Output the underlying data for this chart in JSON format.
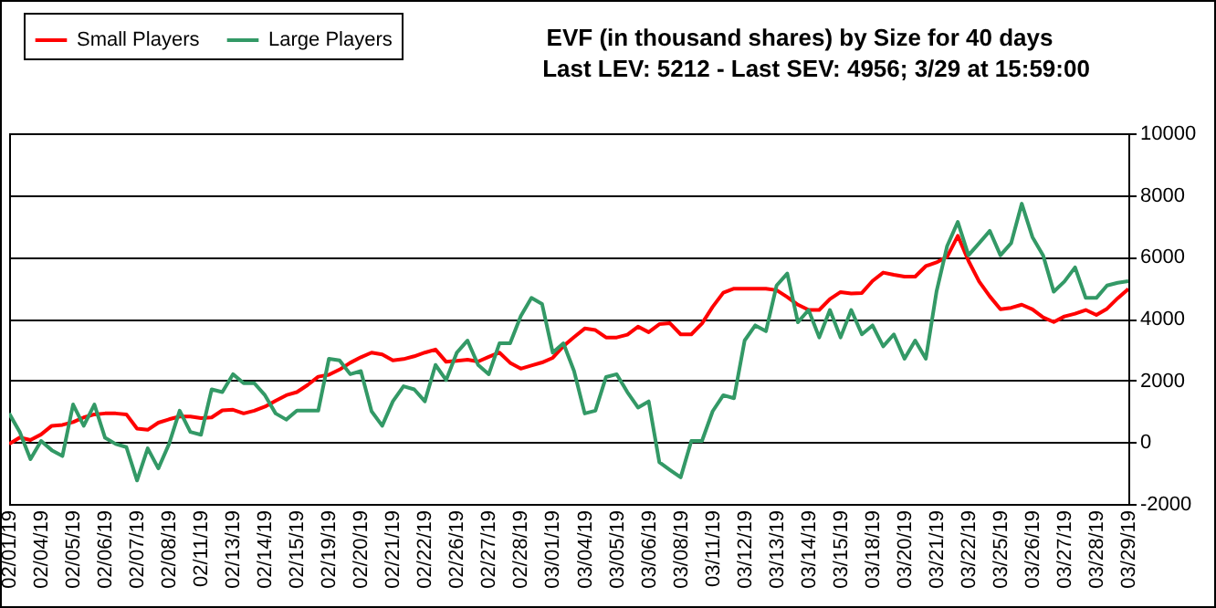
{
  "chart_data": {
    "type": "line",
    "title": "EVF (in thousand shares) by Size for 40 days",
    "subtitle": "Last LEV: 5212 - Last SEV: 4956; 3/29 at 15:59:00",
    "categories": [
      "02/01/19",
      null,
      null,
      "02/04/19",
      null,
      null,
      "02/05/19",
      null,
      null,
      "02/06/19",
      null,
      null,
      "02/07/19",
      null,
      null,
      "02/08/19",
      null,
      null,
      "02/11/19",
      null,
      null,
      "02/13/19",
      null,
      null,
      "02/14/19",
      null,
      null,
      "02/15/19",
      null,
      null,
      "02/19/19",
      null,
      null,
      "02/20/19",
      null,
      null,
      "02/21/19",
      null,
      null,
      "02/22/19",
      null,
      null,
      "02/26/19",
      null,
      null,
      "02/27/19",
      null,
      null,
      "02/28/19",
      null,
      null,
      "03/01/19",
      null,
      null,
      "03/04/19",
      null,
      null,
      "03/05/19",
      null,
      null,
      "03/06/19",
      null,
      null,
      "03/08/19",
      null,
      null,
      "03/11/19",
      null,
      null,
      "03/12/19",
      null,
      null,
      "03/13/19",
      null,
      null,
      "03/14/19",
      null,
      null,
      "03/15/19",
      null,
      null,
      "03/18/19",
      null,
      null,
      "03/20/19",
      null,
      null,
      "03/21/19",
      null,
      null,
      "03/22/19",
      null,
      null,
      "03/25/19",
      null,
      null,
      "03/26/19",
      null,
      null,
      "03/27/19",
      null,
      null,
      "03/28/19",
      null,
      null,
      "03/29/19"
    ],
    "ylim": [
      -2000,
      10000
    ],
    "yticks": [
      -2000,
      0,
      2000,
      4000,
      6000,
      8000,
      10000
    ],
    "grid": "y",
    "legend": "top left",
    "series": [
      {
        "name": "Small Players",
        "color": "#ff0000",
        "values": [
          -60,
          150,
          70,
          250,
          530,
          560,
          650,
          800,
          900,
          930,
          930,
          900,
          440,
          400,
          630,
          740,
          830,
          830,
          780,
          800,
          1030,
          1050,
          930,
          1020,
          1150,
          1340,
          1520,
          1620,
          1850,
          2120,
          2180,
          2350,
          2570,
          2750,
          2900,
          2840,
          2650,
          2690,
          2780,
          2900,
          3000,
          2600,
          2630,
          2670,
          2610,
          2760,
          2900,
          2570,
          2380,
          2480,
          2580,
          2730,
          3110,
          3400,
          3680,
          3630,
          3390,
          3390,
          3480,
          3740,
          3560,
          3820,
          3850,
          3490,
          3490,
          3840,
          4380,
          4840,
          4970,
          4970,
          4970,
          4970,
          4920,
          4700,
          4450,
          4280,
          4280,
          4630,
          4860,
          4810,
          4830,
          5220,
          5490,
          5420,
          5360,
          5360,
          5700,
          5820,
          6000,
          6680,
          5870,
          5200,
          4720,
          4300,
          4350,
          4450,
          4300,
          4040,
          3890,
          4070,
          4160,
          4280,
          4120,
          4320,
          4660,
          4960
        ]
      },
      {
        "name": "Large Players",
        "color": "#339966",
        "values": [
          930,
          330,
          -550,
          40,
          -260,
          -450,
          1220,
          530,
          1220,
          140,
          -60,
          -160,
          -1240,
          -200,
          -850,
          -60,
          1020,
          330,
          240,
          1710,
          1620,
          2200,
          1910,
          1910,
          1520,
          930,
          730,
          1020,
          1020,
          1020,
          2700,
          2650,
          2200,
          2300,
          1000,
          530,
          1320,
          1810,
          1710,
          1320,
          2500,
          2010,
          2900,
          3290,
          2500,
          2200,
          3200,
          3200,
          4080,
          4670,
          4470,
          2900,
          3200,
          2300,
          930,
          1020,
          2110,
          2200,
          1620,
          1120,
          1320,
          -650,
          -900,
          -1140,
          40,
          40,
          1000,
          1520,
          1420,
          3290,
          3780,
          3590,
          5070,
          5460,
          3880,
          4280,
          3390,
          4280,
          3390,
          4280,
          3490,
          3780,
          3100,
          3490,
          2700,
          3290,
          2700,
          4870,
          6350,
          7130,
          6050,
          6440,
          6840,
          6050,
          6440,
          7720,
          6640,
          6050,
          4870,
          5200,
          5660,
          4670,
          4670,
          5070,
          5160,
          5210
        ]
      }
    ]
  }
}
